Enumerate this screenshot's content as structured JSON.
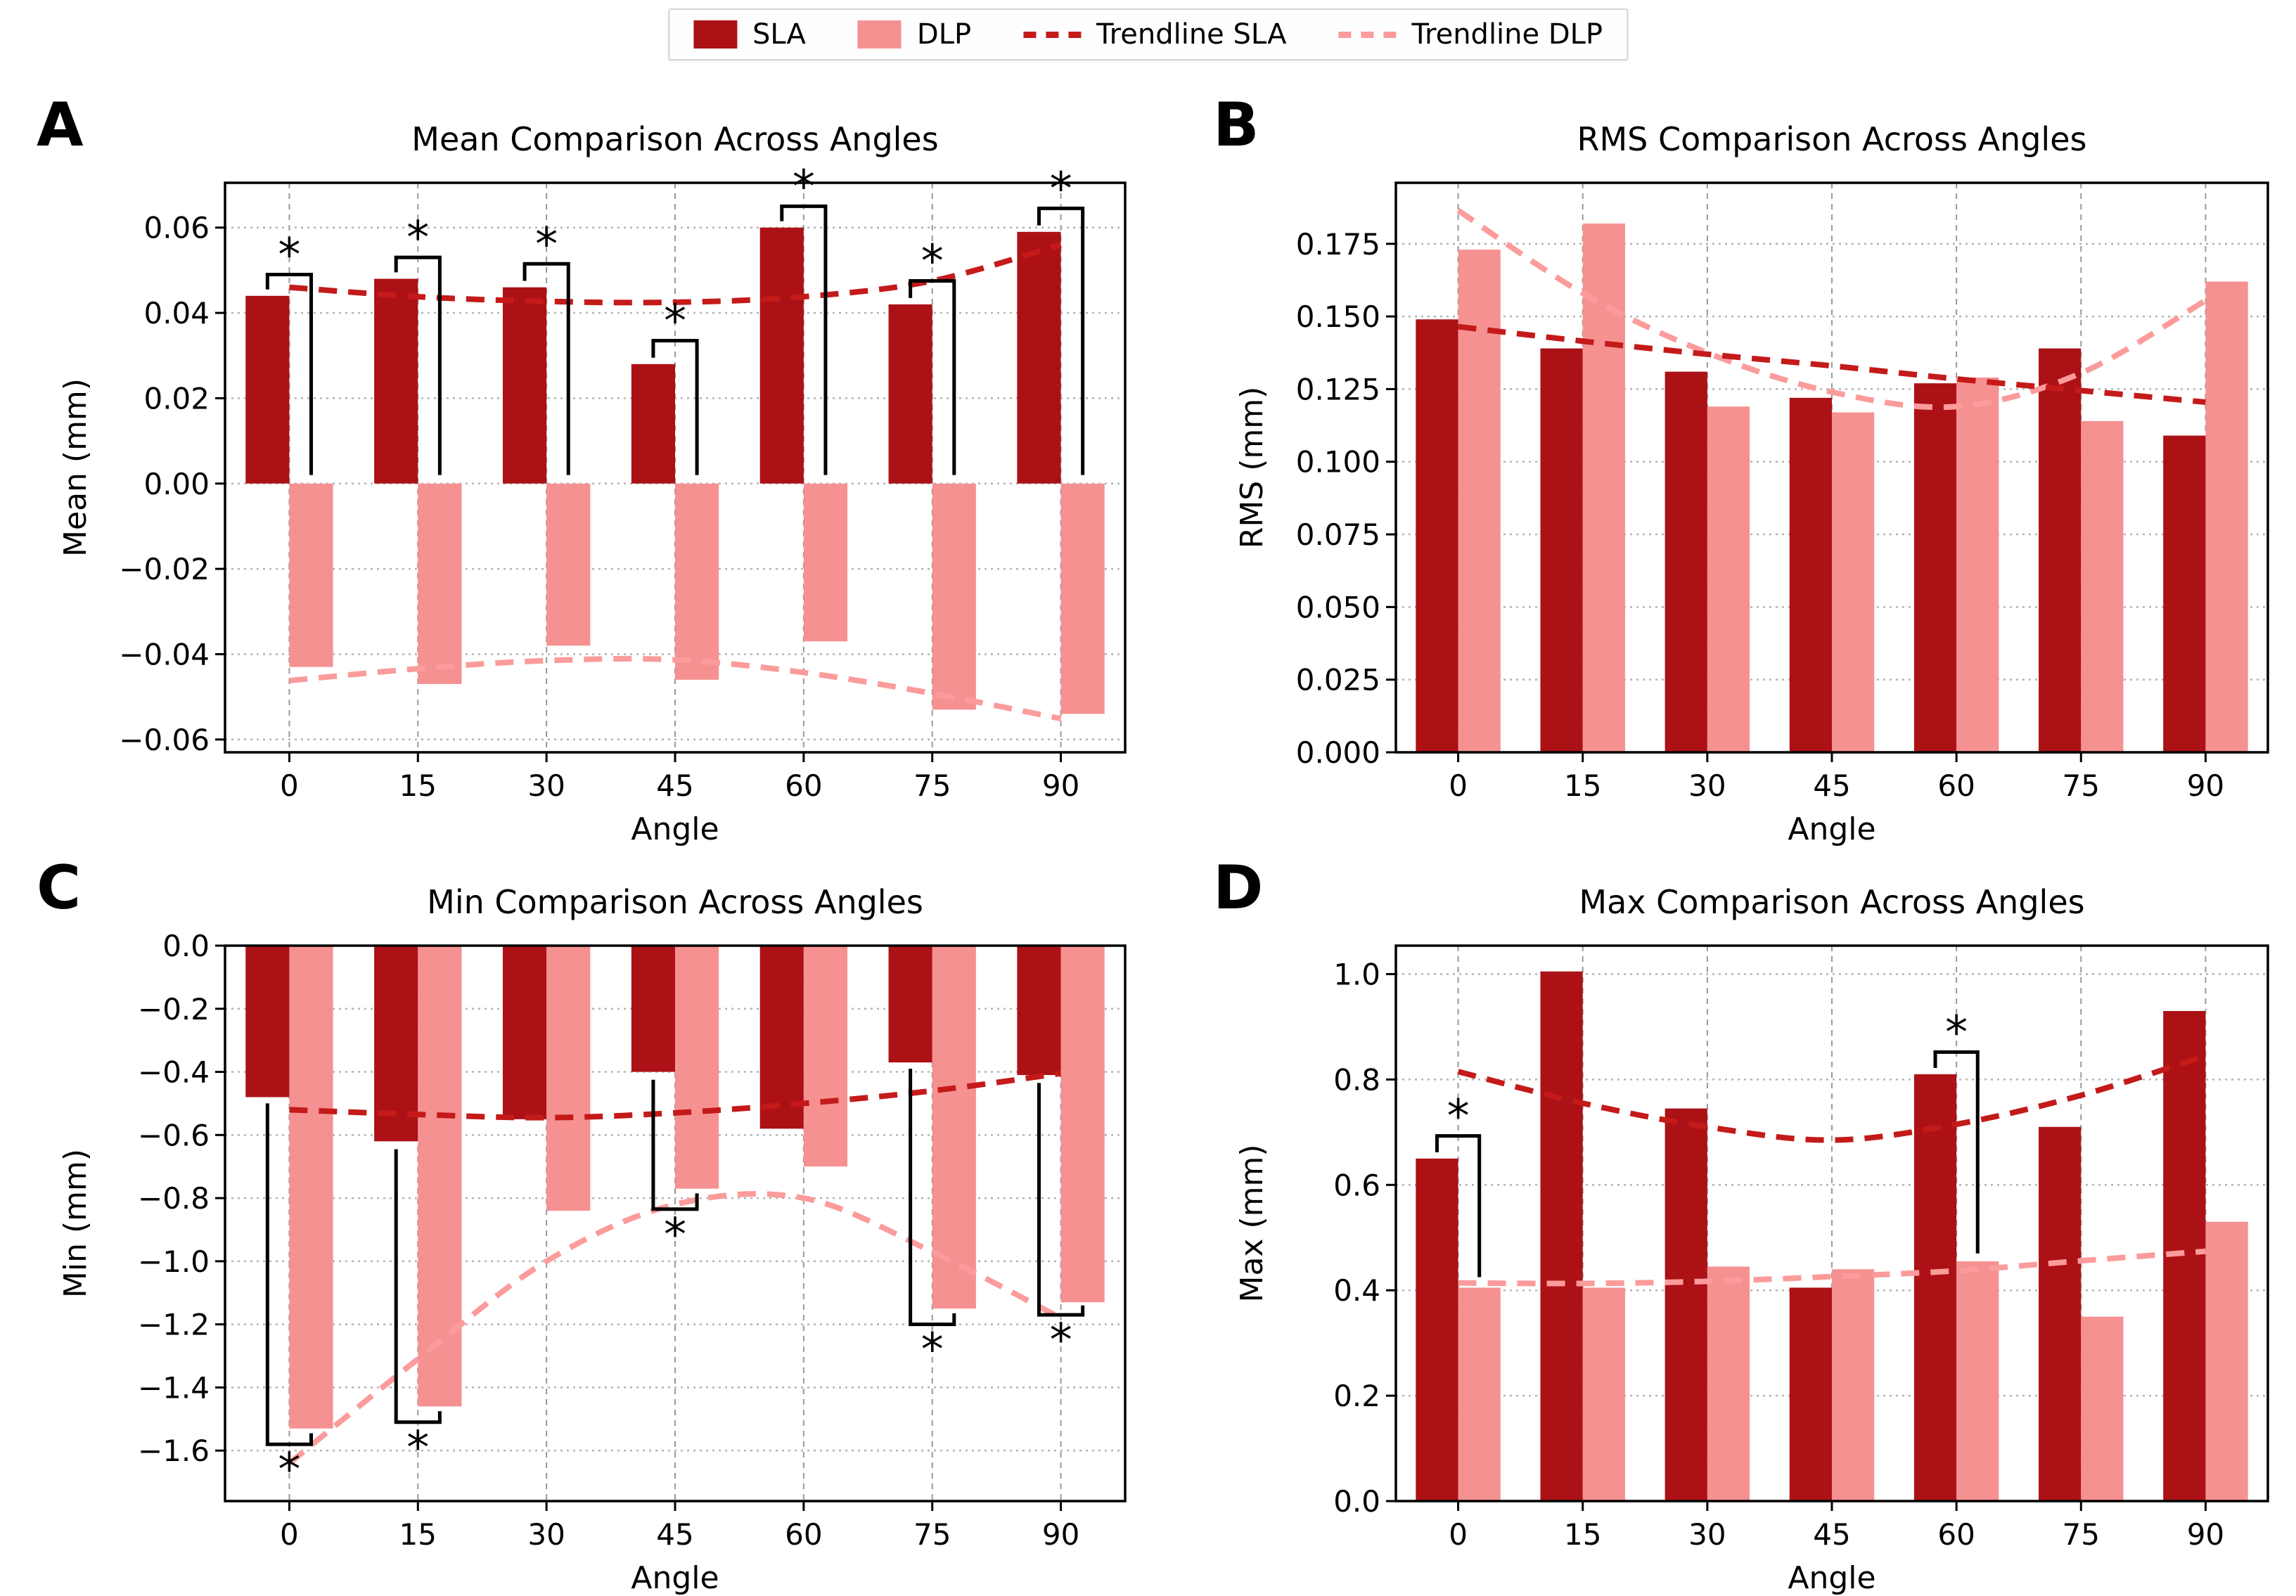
{
  "figure": {
    "background": "#ffffff"
  },
  "colors": {
    "sla": "#AC1115",
    "dlp": "#F69191",
    "trend_sla": "#C41A1A",
    "trend_dlp": "#FB9B9B",
    "grid_h": "#b3b3b3",
    "grid_v": "#999999",
    "axis": "#000000",
    "bracket": "#000000"
  },
  "legend": {
    "items": [
      {
        "label": "SLA",
        "swatch": "sla"
      },
      {
        "label": "DLP",
        "swatch": "dlp"
      },
      {
        "label": "Trendline SLA",
        "line": "trend_sla"
      },
      {
        "label": "Trendline DLP",
        "line": "trend_dlp"
      }
    ]
  },
  "chart_data": [
    {
      "type": "bar",
      "panel": "A",
      "title": "Mean Comparison Across Angles",
      "xlabel": "Angle",
      "ylabel": "Mean (mm)",
      "categories": [
        0,
        15,
        30,
        45,
        60,
        75,
        90
      ],
      "ylim": [
        -0.063,
        0.0705
      ],
      "yticks": [
        -0.06,
        -0.04,
        -0.02,
        0,
        0.02,
        0.04,
        0.06
      ],
      "ytick_decimals": 2,
      "grid": true,
      "legend_position": "figure-top",
      "series": [
        {
          "name": "SLA",
          "kind": "bar",
          "values": [
            0.044,
            0.048,
            0.046,
            0.028,
            0.06,
            0.042,
            0.059
          ]
        },
        {
          "name": "DLP",
          "kind": "bar",
          "values": [
            -0.043,
            -0.047,
            -0.038,
            -0.046,
            -0.037,
            -0.053,
            -0.054
          ]
        },
        {
          "name": "Trendline SLA",
          "kind": "trend",
          "values": [
            0.046,
            0.0438,
            0.0427,
            0.0425,
            0.0438,
            0.0475,
            0.056
          ]
        },
        {
          "name": "Trendline DLP",
          "kind": "trend",
          "values": [
            -0.0462,
            -0.0434,
            -0.0415,
            -0.0413,
            -0.0443,
            -0.0492,
            -0.0551
          ]
        }
      ],
      "significance": [
        {
          "angle": 0,
          "side": "top",
          "a_end": 0.0455,
          "cap": 0.049,
          "b_end": 0.002,
          "label": "*"
        },
        {
          "angle": 15,
          "side": "top",
          "a_end": 0.0495,
          "cap": 0.053,
          "b_end": 0.002,
          "label": "*"
        },
        {
          "angle": 30,
          "side": "top",
          "a_end": 0.0475,
          "cap": 0.0515,
          "b_end": 0.002,
          "label": "*"
        },
        {
          "angle": 45,
          "side": "top",
          "a_end": 0.0295,
          "cap": 0.0335,
          "b_end": 0.002,
          "label": "*"
        },
        {
          "angle": 60,
          "side": "top",
          "a_end": 0.0615,
          "cap": 0.065,
          "b_end": 0.002,
          "label": "*"
        },
        {
          "angle": 75,
          "side": "top",
          "a_end": 0.0435,
          "cap": 0.0475,
          "b_end": 0.002,
          "label": "*"
        },
        {
          "angle": 90,
          "side": "top",
          "a_end": 0.0605,
          "cap": 0.0645,
          "b_end": 0.002,
          "label": "*"
        }
      ]
    },
    {
      "type": "bar",
      "panel": "B",
      "title": "RMS Comparison Across Angles",
      "xlabel": "Angle",
      "ylabel": "RMS (mm)",
      "categories": [
        0,
        15,
        30,
        45,
        60,
        75,
        90
      ],
      "ylim": [
        0,
        0.196
      ],
      "yticks": [
        0,
        0.025,
        0.05,
        0.075,
        0.1,
        0.125,
        0.15,
        0.175
      ],
      "ytick_decimals": 3,
      "grid": true,
      "series": [
        {
          "name": "SLA",
          "kind": "bar",
          "values": [
            0.149,
            0.139,
            0.131,
            0.122,
            0.127,
            0.139,
            0.109
          ]
        },
        {
          "name": "DLP",
          "kind": "bar",
          "values": [
            0.173,
            0.182,
            0.119,
            0.117,
            0.129,
            0.114,
            0.162
          ]
        },
        {
          "name": "Trendline SLA",
          "kind": "trend",
          "values": [
            0.1465,
            0.1415,
            0.137,
            0.133,
            0.1285,
            0.1245,
            0.1205
          ]
        },
        {
          "name": "Trendline DLP",
          "kind": "trend",
          "values": [
            0.1865,
            0.158,
            0.1375,
            0.124,
            0.119,
            0.1305,
            0.1555
          ]
        }
      ],
      "significance": []
    },
    {
      "type": "bar",
      "panel": "C",
      "title": "Min Comparison Across Angles",
      "xlabel": "Angle",
      "ylabel": "Min (mm)",
      "categories": [
        0,
        15,
        30,
        45,
        60,
        75,
        90
      ],
      "ylim": [
        -1.76,
        0
      ],
      "yticks": [
        -1.6,
        -1.4,
        -1.2,
        -1.0,
        -0.8,
        -0.6,
        -0.4,
        -0.2,
        0
      ],
      "ytick_decimals": 1,
      "grid": true,
      "series": [
        {
          "name": "SLA",
          "kind": "bar",
          "values": [
            -0.48,
            -0.62,
            -0.55,
            -0.4,
            -0.58,
            -0.37,
            -0.41
          ]
        },
        {
          "name": "DLP",
          "kind": "bar",
          "values": [
            -1.53,
            -1.46,
            -0.84,
            -0.77,
            -0.7,
            -1.15,
            -1.13
          ]
        },
        {
          "name": "Trendline SLA",
          "kind": "trend",
          "values": [
            -0.52,
            -0.535,
            -0.545,
            -0.53,
            -0.5,
            -0.46,
            -0.405
          ]
        },
        {
          "name": "Trendline DLP",
          "kind": "trend",
          "values": [
            -1.64,
            -1.31,
            -1.0,
            -0.82,
            -0.8,
            -0.97,
            -1.18
          ]
        }
      ],
      "significance": [
        {
          "angle": 0,
          "side": "bottom",
          "a_end": -0.5,
          "cap": -1.58,
          "b_end": -1.545,
          "label": "*"
        },
        {
          "angle": 15,
          "side": "bottom",
          "a_end": -0.645,
          "cap": -1.51,
          "b_end": -1.475,
          "label": "*"
        },
        {
          "angle": 45,
          "side": "bottom",
          "a_end": -0.425,
          "cap": -0.835,
          "b_end": -0.785,
          "label": "*"
        },
        {
          "angle": 75,
          "side": "bottom",
          "a_end": -0.39,
          "cap": -1.2,
          "b_end": -1.165,
          "label": "*"
        },
        {
          "angle": 90,
          "side": "bottom",
          "a_end": -0.435,
          "cap": -1.17,
          "b_end": -1.14,
          "label": "*"
        }
      ]
    },
    {
      "type": "bar",
      "panel": "D",
      "title": "Max Comparison Across Angles",
      "xlabel": "Angle",
      "ylabel": "Max (mm)",
      "categories": [
        0,
        15,
        30,
        45,
        60,
        75,
        90
      ],
      "ylim": [
        0,
        1.054
      ],
      "yticks": [
        0,
        0.2,
        0.4,
        0.6,
        0.8,
        1.0
      ],
      "ytick_decimals": 1,
      "grid": true,
      "series": [
        {
          "name": "SLA",
          "kind": "bar",
          "values": [
            0.65,
            1.005,
            0.745,
            0.405,
            0.81,
            0.71,
            0.93
          ]
        },
        {
          "name": "DLP",
          "kind": "bar",
          "values": [
            0.405,
            0.405,
            0.445,
            0.44,
            0.455,
            0.35,
            0.53
          ]
        },
        {
          "name": "Trendline SLA",
          "kind": "trend",
          "values": [
            0.815,
            0.755,
            0.71,
            0.685,
            0.715,
            0.77,
            0.845
          ]
        },
        {
          "name": "Trendline DLP",
          "kind": "trend",
          "values": [
            0.414,
            0.413,
            0.417,
            0.426,
            0.437,
            0.456,
            0.474
          ]
        }
      ],
      "significance": [
        {
          "angle": 0,
          "side": "top",
          "a_end": 0.662,
          "cap": 0.693,
          "b_end": 0.425,
          "label": "*"
        },
        {
          "angle": 60,
          "side": "top",
          "a_end": 0.822,
          "cap": 0.852,
          "b_end": 0.47,
          "label": "*"
        }
      ]
    }
  ]
}
